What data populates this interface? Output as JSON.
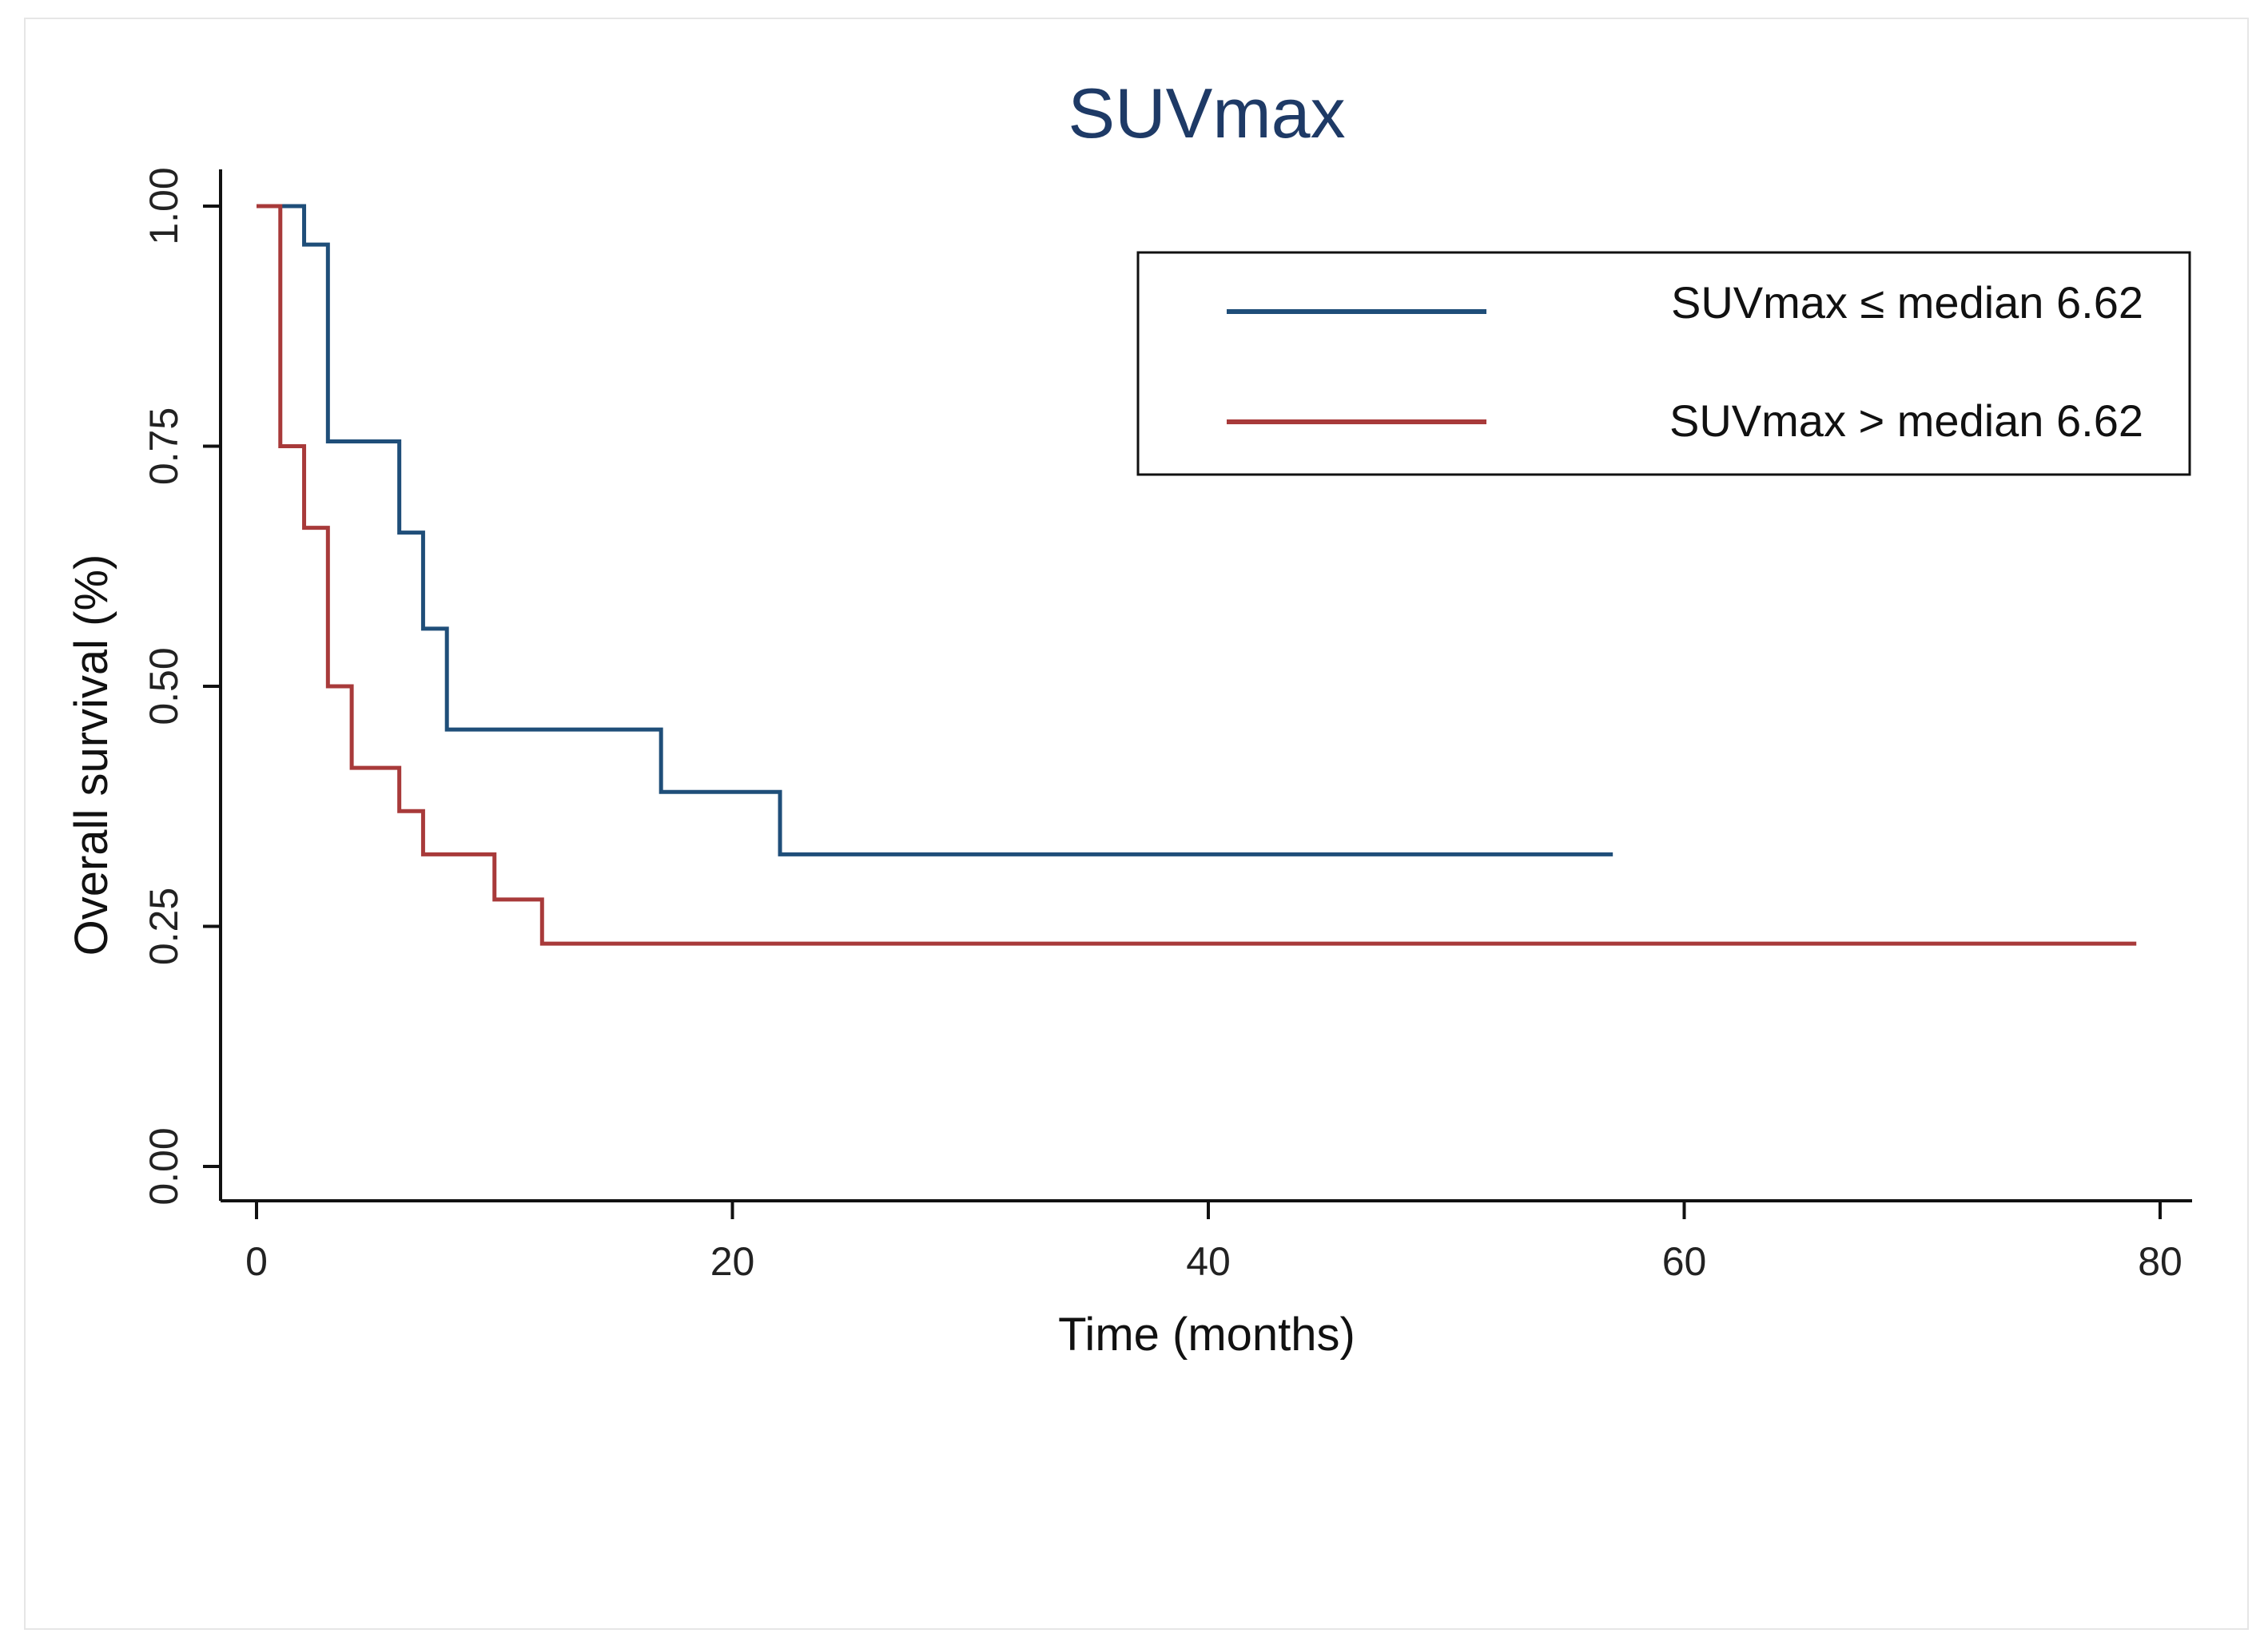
{
  "chart_data": {
    "type": "line",
    "subtype": "kaplan-meier step",
    "title": "SUVmax",
    "xlabel": "Time (months)",
    "ylabel": "Overall survival (%)",
    "xlim": [
      0,
      80
    ],
    "ylim": [
      0,
      1
    ],
    "xticks": [
      0,
      20,
      40,
      60,
      80
    ],
    "yticks": [
      0.0,
      0.25,
      0.5,
      0.75,
      1.0
    ],
    "ytick_labels": [
      "0.00",
      "0.25",
      "0.50",
      "0.75",
      "1.00"
    ],
    "xtick_labels": [
      "0",
      "20",
      "40",
      "60",
      "80"
    ],
    "grid": false,
    "legend_position": "top-right",
    "series": [
      {
        "name": "SUVmax ≤ median 6.62",
        "color": "#1f4e79",
        "steps": [
          [
            0,
            1.0
          ],
          [
            2,
            0.96
          ],
          [
            3,
            0.88
          ],
          [
            3,
            0.755
          ],
          [
            6,
            0.755
          ],
          [
            6,
            0.66
          ],
          [
            7,
            0.56
          ],
          [
            8,
            0.455
          ],
          [
            17,
            0.39
          ],
          [
            22,
            0.325
          ]
        ],
        "end_x": 57
      },
      {
        "name": "SUVmax > median 6.62",
        "color": "#a83a3a",
        "steps": [
          [
            0,
            1.0
          ],
          [
            1,
            0.75
          ],
          [
            2,
            0.665
          ],
          [
            3,
            0.5
          ],
          [
            4,
            0.415
          ],
          [
            6,
            0.37
          ],
          [
            7,
            0.325
          ],
          [
            10,
            0.278
          ],
          [
            12,
            0.232
          ]
        ],
        "end_x": 79
      }
    ]
  }
}
